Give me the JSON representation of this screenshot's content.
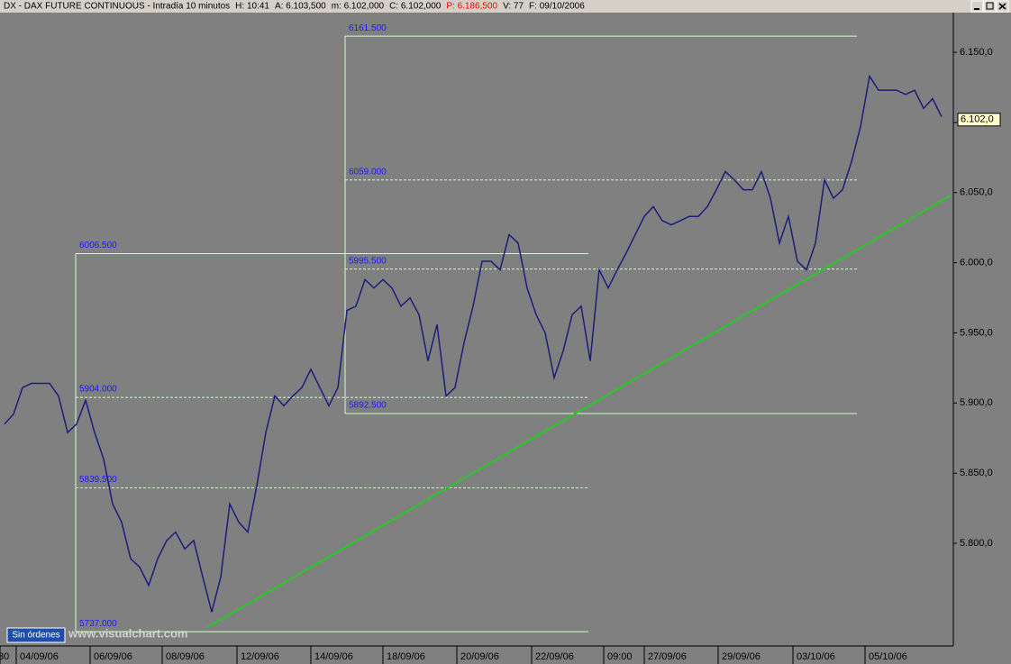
{
  "chart_data": {
    "type": "line",
    "header": {
      "title": "DX - DAX FUTURE CONTINUOUS - Intradía 10 minutos",
      "fields": [
        "H: 10:41",
        "A: 6.103,500",
        "m: 6.102,000",
        "C: 6.102,000",
        "P: 6.186,500",
        "V: 77",
        "F: 09/10/2006"
      ]
    },
    "x": [
      0,
      1,
      2,
      3,
      4,
      5,
      6,
      7,
      8,
      9,
      10,
      11,
      12,
      13,
      14,
      15,
      16,
      17,
      18,
      19,
      20,
      21,
      22,
      23,
      24,
      25,
      26,
      27,
      28,
      29,
      30,
      31,
      32,
      33,
      34,
      35,
      36,
      37,
      38,
      39,
      40,
      41,
      42,
      43,
      44,
      45,
      46,
      47,
      48,
      49,
      50,
      51,
      52,
      53,
      54,
      55,
      56,
      57,
      58,
      59,
      60,
      61,
      62,
      63,
      64,
      65,
      66,
      67,
      68,
      69,
      70,
      71,
      72,
      73,
      74,
      75,
      76,
      77,
      78,
      79,
      80,
      81,
      82,
      83,
      84,
      85,
      86,
      87,
      88,
      89,
      90,
      91,
      92,
      93,
      94,
      95,
      96,
      97,
      98,
      99,
      100,
      101,
      102,
      103,
      104
    ],
    "series": [
      {
        "name": "DX",
        "color": "#1c1c7a",
        "values": [
          5885,
          5892,
          5911,
          5914,
          5914,
          5914,
          5905,
          5879,
          5885,
          5902,
          5879,
          5860,
          5828,
          5815,
          5789,
          5783,
          5770,
          5789,
          5802,
          5808,
          5796,
          5802,
          5776,
          5751,
          5776,
          5828,
          5815,
          5808,
          5841,
          5879,
          5905,
          5898,
          5905,
          5911,
          5924,
          5911,
          5898,
          5911,
          5966,
          5969,
          5988,
          5982,
          5988,
          5982,
          5969,
          5975,
          5963,
          5930,
          5956,
          5905,
          5911,
          5943,
          5969,
          6001,
          6001,
          5995,
          6020,
          6014,
          5982,
          5963,
          5950,
          5918,
          5937,
          5963,
          5969,
          5930,
          5995,
          5982,
          5995,
          6007,
          6020,
          6033,
          6040,
          6030,
          6027,
          6030,
          6033,
          6033,
          6040,
          6052,
          6065,
          6059,
          6052,
          6052,
          6065,
          6046,
          6014,
          6033,
          6001,
          5995,
          6014,
          6059,
          6046,
          6052,
          6072,
          6097,
          6133,
          6123,
          6123,
          6123,
          6120,
          6123,
          6110,
          6117,
          6104
        ]
      }
    ],
    "last": {
      "value": 6102,
      "label": "6.102,0"
    },
    "xlim": [
      -0.5,
      105.3
    ],
    "ylim": [
      5726.8,
      6178.3
    ],
    "yticks": [
      {
        "value": 5800,
        "label": "5.800,0"
      },
      {
        "value": 5850,
        "label": "5.850,0"
      },
      {
        "value": 5900,
        "label": "5.900,0"
      },
      {
        "value": 5950,
        "label": "5.950,0"
      },
      {
        "value": 6000,
        "label": "6.000,0"
      },
      {
        "value": 6050,
        "label": "6.050,0"
      },
      {
        "value": 6100,
        "label": "6.100,0"
      },
      {
        "value": 6150,
        "label": "6.150,0"
      }
    ],
    "xticks": [
      {
        "value": -0.5,
        "label": "30"
      },
      {
        "value": 1.3,
        "label": "04/09/06"
      },
      {
        "value": 9.5,
        "label": "06/09/06"
      },
      {
        "value": 17.5,
        "label": "08/09/06"
      },
      {
        "value": 25.8,
        "label": "12/09/06"
      },
      {
        "value": 34,
        "label": "14/09/06"
      },
      {
        "value": 42,
        "label": "18/09/06"
      },
      {
        "value": 50.2,
        "label": "20/09/06"
      },
      {
        "value": 58.5,
        "label": "22/09/06"
      },
      {
        "value": 66.5,
        "label": "09:00"
      },
      {
        "value": 71,
        "label": "27/09/06"
      },
      {
        "value": 79.2,
        "label": "29/09/06"
      },
      {
        "value": 87.5,
        "label": "03/10/06"
      },
      {
        "value": 95.5,
        "label": "05/10/06"
      }
    ],
    "retracements": [
      {
        "x_range": [
          7.9,
          64.8
        ],
        "color": "#ccffcc",
        "label_color": "#1a1aff",
        "levels": [
          {
            "value": 6006.5,
            "label": "6006.500"
          },
          {
            "value": 5904,
            "label": "5904.000"
          },
          {
            "value": 5839.5,
            "label": "5839.500"
          },
          {
            "value": 5737,
            "label": "5737.000"
          }
        ]
      },
      {
        "x_range": [
          37.8,
          94.6
        ],
        "color": "#ccffcc",
        "label_color": "#1a1aff",
        "levels": [
          {
            "value": 6161.5,
            "label": "6161.500"
          },
          {
            "value": 6059,
            "label": "6059.000"
          },
          {
            "value": 5995.5,
            "label": "5995.500"
          },
          {
            "value": 5892.5,
            "label": "5892.500"
          }
        ]
      }
    ],
    "trendline": {
      "x": [
        22.5,
        105
      ],
      "values": [
        5740,
        6048
      ],
      "color": "#22cc22"
    },
    "button": "Sin órdenes",
    "watermark": "www.visualchart.com"
  }
}
